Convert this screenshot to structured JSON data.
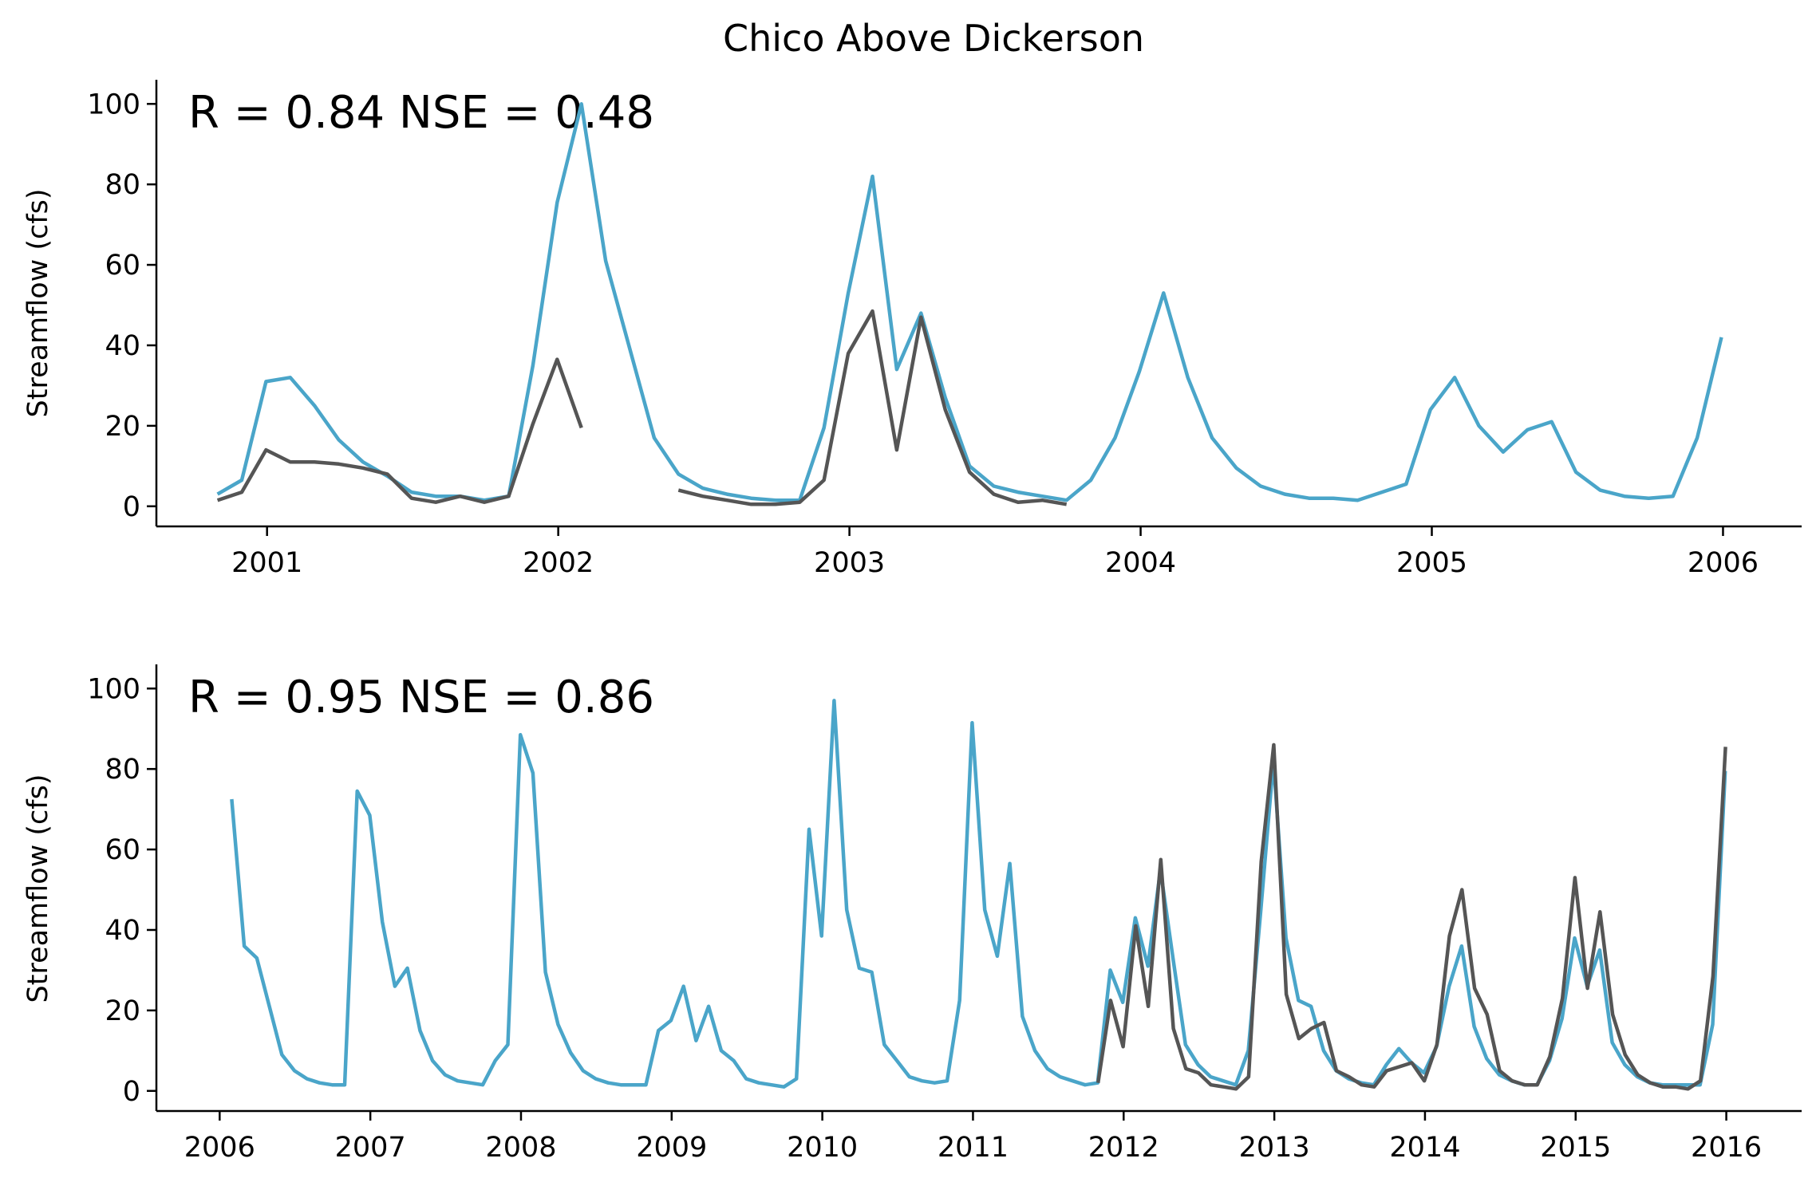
{
  "figure": {
    "title": "Chico Above Dickerson",
    "colors": {
      "observed": "#555555",
      "simulated": "#4aa5c9"
    }
  },
  "chart_data": [
    {
      "type": "line",
      "panel": "top",
      "stats_text": "R = 0.84  NSE = 0.48",
      "xlabel": "",
      "ylabel": "Streamflow (cfs)",
      "x_ticks": [
        "2001",
        "2002",
        "2003",
        "2004",
        "2005",
        "2006"
      ],
      "y_ticks": [
        "0",
        "20",
        "40",
        "60",
        "80",
        "100"
      ],
      "xlim": [
        2000.62,
        2006.27
      ],
      "ylim": [
        -5,
        106
      ],
      "grid": false,
      "x_start": 2000.83,
      "x_step": 0.0833,
      "series": [
        {
          "role": "simulated",
          "values": [
            3,
            6.5,
            31,
            32,
            25,
            16.5,
            11,
            7.5,
            3.5,
            2.5,
            2.5,
            1.5,
            2.5,
            35,
            75.5,
            100,
            61,
            39,
            17,
            8,
            4.5,
            3,
            2,
            1.5,
            1.5,
            19.5,
            53,
            82,
            34,
            48,
            27,
            10,
            5,
            3.5,
            2.5,
            1.5,
            6.5,
            17,
            33.5,
            53,
            32,
            17,
            9.5,
            5,
            3,
            2,
            2,
            1.5,
            3.5,
            5.5,
            24,
            32,
            20,
            13.5,
            19,
            21,
            8.5,
            4,
            2.5,
            2,
            2.5,
            17,
            42
          ]
        },
        {
          "role": "observed",
          "values": [
            1.5,
            3.5,
            14,
            11,
            11,
            10.5,
            9.5,
            8,
            2,
            1,
            2.5,
            1,
            2.5,
            20.5,
            36.5,
            19.5,
            null,
            null,
            null,
            4,
            2.5,
            1.5,
            0.5,
            0.5,
            1,
            6.5,
            38,
            48.5,
            14,
            47,
            24,
            8.5,
            3,
            1,
            1.5,
            0.5
          ]
        }
      ]
    },
    {
      "type": "line",
      "panel": "bottom",
      "stats_text": "R = 0.95  NSE = 0.86",
      "xlabel": "",
      "ylabel": "Streamflow (cfs)",
      "x_ticks": [
        "2006",
        "2007",
        "2008",
        "2009",
        "2010",
        "2011",
        "2012",
        "2013",
        "2014",
        "2015",
        "2016"
      ],
      "y_ticks": [
        "0",
        "20",
        "40",
        "60",
        "80",
        "100"
      ],
      "xlim": [
        2005.58,
        2016.5
      ],
      "ylim": [
        -5,
        106
      ],
      "grid": false,
      "x_start": 2006.08,
      "x_step": 0.0833,
      "series": [
        {
          "role": "simulated",
          "values": [
            72.5,
            36,
            33,
            21,
            9,
            5,
            3,
            2,
            1.5,
            1.5,
            74.5,
            68.5,
            42,
            26,
            30.5,
            15,
            7.5,
            4,
            2.5,
            2,
            1.5,
            7.5,
            11.5,
            88.5,
            79,
            29.5,
            16.5,
            9.5,
            5,
            3,
            2,
            1.5,
            1.5,
            1.5,
            15,
            17.5,
            26,
            12.5,
            21,
            10,
            7.5,
            3,
            2,
            1.5,
            1,
            3,
            65,
            38.5,
            97,
            45,
            30.5,
            29.5,
            11.5,
            7.5,
            3.5,
            2.5,
            2,
            2.5,
            22.5,
            91.5,
            45,
            33.5,
            56.5,
            18.5,
            10,
            5.5,
            3.5,
            2.5,
            1.5,
            2,
            30,
            22,
            43,
            31,
            55,
            33,
            11.5,
            6.5,
            3.5,
            2.5,
            1.5,
            10,
            45,
            82,
            38,
            22.5,
            21,
            10,
            5,
            3,
            2,
            1.5,
            6.5,
            10.5,
            7,
            4.5,
            11,
            26,
            36,
            16,
            8,
            4,
            2.5,
            1.5,
            1.5,
            7.5,
            18,
            38,
            26,
            35,
            12,
            6.5,
            3.5,
            2,
            1.5,
            1.5,
            1.5,
            1.5,
            16.5,
            79.5
          ]
        },
        {
          "role": "observed",
          "x_start": 2011.83,
          "values": [
            2,
            22.5,
            11,
            41,
            21,
            57.5,
            15.5,
            5.5,
            4.5,
            1.5,
            1,
            0.5,
            3.5,
            57,
            86,
            24,
            13,
            15.5,
            17,
            5,
            3.5,
            1.5,
            1,
            5,
            6,
            7,
            2.5,
            11.5,
            38.5,
            50,
            25.5,
            19,
            5,
            2.5,
            1.5,
            1.5,
            8.5,
            23,
            53,
            25.5,
            44.5,
            19,
            9,
            4,
            2,
            1,
            1,
            0.5,
            2.5,
            28.5,
            85.5
          ]
        }
      ]
    }
  ]
}
